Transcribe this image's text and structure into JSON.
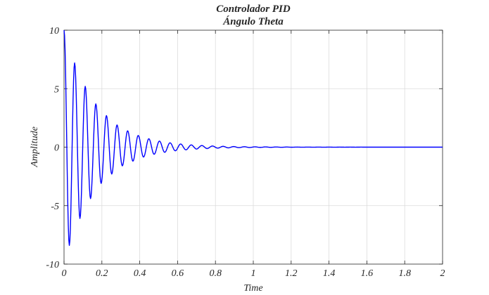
{
  "chart_data": {
    "type": "line",
    "title": "Controlador PID",
    "subtitle": "Ángulo Theta",
    "xlabel": "Time",
    "ylabel": "Amplitude",
    "xlim": [
      0,
      2
    ],
    "ylim": [
      -10,
      10
    ],
    "grid": true,
    "x_ticks": [
      0,
      0.2,
      0.4,
      0.6,
      0.8,
      1,
      1.2,
      1.4,
      1.6,
      1.8,
      2
    ],
    "x_tick_labels": [
      "0",
      "0.2",
      "0.4",
      "0.6",
      "0.8",
      "1",
      "1.2",
      "1.4",
      "1.6",
      "1.8",
      "2"
    ],
    "y_ticks": [
      -10,
      -5,
      0,
      5,
      10
    ],
    "y_tick_labels": [
      "-10",
      "-5",
      "0",
      "5",
      "10"
    ],
    "series": [
      {
        "color": "#0000ff",
        "points": [
          [
            0,
            10
          ],
          [
            0.028,
            -8.4
          ],
          [
            0.056,
            7.2
          ],
          [
            0.084,
            -6.1
          ],
          [
            0.112,
            5.2
          ],
          [
            0.14,
            -4.4
          ],
          [
            0.168,
            3.7
          ],
          [
            0.196,
            -3.1
          ],
          [
            0.224,
            2.7
          ],
          [
            0.252,
            -2.3
          ],
          [
            0.28,
            1.9
          ],
          [
            0.308,
            -1.6
          ],
          [
            0.336,
            1.4
          ],
          [
            0.364,
            -1.2
          ],
          [
            0.392,
            1.0
          ],
          [
            0.42,
            -0.85
          ],
          [
            0.448,
            0.72
          ],
          [
            0.476,
            -0.61
          ],
          [
            0.504,
            0.52
          ],
          [
            0.532,
            -0.44
          ],
          [
            0.56,
            0.37
          ],
          [
            0.588,
            -0.31
          ],
          [
            0.616,
            0.27
          ],
          [
            0.644,
            -0.23
          ],
          [
            0.672,
            0.19
          ],
          [
            0.7,
            -0.16
          ],
          [
            0.728,
            0.14
          ],
          [
            0.756,
            -0.12
          ],
          [
            0.784,
            0.1
          ],
          [
            0.812,
            -0.085
          ],
          [
            0.84,
            0.072
          ],
          [
            0.868,
            -0.061
          ],
          [
            0.896,
            0.052
          ],
          [
            0.924,
            -0.044
          ],
          [
            0.952,
            0.037
          ],
          [
            0.98,
            -0.031
          ],
          [
            1.008,
            0.027
          ],
          [
            1.036,
            -0.023
          ],
          [
            1.064,
            0.019
          ],
          [
            1.092,
            -0.016
          ],
          [
            1.12,
            0.014
          ],
          [
            1.148,
            -0.012
          ],
          [
            1.176,
            0.01
          ],
          [
            1.204,
            -0.008
          ],
          [
            1.232,
            0.007
          ],
          [
            1.26,
            -0.006
          ],
          [
            1.288,
            0.005
          ],
          [
            1.316,
            -0.004
          ],
          [
            1.344,
            0.003
          ],
          [
            1.372,
            -0.003
          ],
          [
            1.4,
            0.002
          ],
          [
            1.428,
            -0.002
          ],
          [
            1.456,
            0.001
          ],
          [
            1.484,
            -0.001
          ],
          [
            1.512,
            0.001
          ],
          [
            1.54,
            -0.001
          ],
          [
            1.568,
            0.001
          ],
          [
            1.596,
            0
          ],
          [
            1.624,
            0
          ],
          [
            1.652,
            0
          ],
          [
            1.68,
            0
          ],
          [
            1.708,
            0
          ],
          [
            1.736,
            0
          ],
          [
            1.764,
            0
          ],
          [
            1.792,
            0
          ],
          [
            1.82,
            0
          ],
          [
            1.848,
            0
          ],
          [
            1.876,
            0
          ],
          [
            1.904,
            0
          ],
          [
            1.932,
            0
          ],
          [
            1.96,
            0
          ],
          [
            1.988,
            0
          ],
          [
            2,
            0
          ]
        ]
      }
    ]
  },
  "colors": {
    "line": "#0000ff",
    "grid": "#dcdcdc",
    "axis": "#262626",
    "background": "#ffffff"
  }
}
